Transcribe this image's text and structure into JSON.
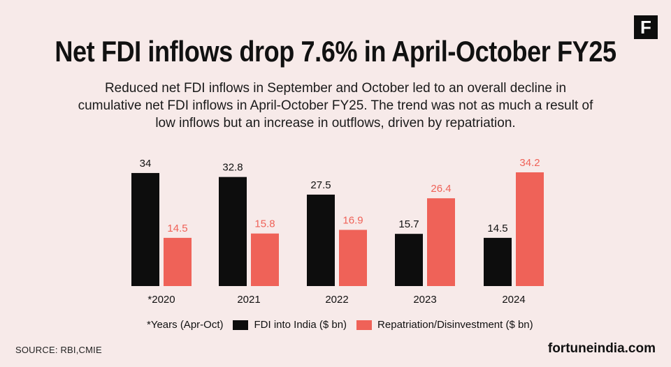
{
  "brand": {
    "logo_letter": "F",
    "site": "fortuneindia.com"
  },
  "header": {
    "title": "Net FDI inflows drop 7.6% in April-October FY25",
    "subtitle": "Reduced net FDI inflows in September and October led to an overall decline in cumulative net FDI inflows in April-October FY25. The trend was not as much a result of low inflows but an increase in outflows, driven by repatriation."
  },
  "legend": {
    "note": "*Years (Apr-Oct)",
    "items": [
      {
        "label": "FDI into India ($ bn)"
      },
      {
        "label": "Repatriation/Disinvestment ($ bn)"
      }
    ]
  },
  "footer": {
    "source": "SOURCE: RBI,CMIE"
  },
  "colors": {
    "fdi": "#0d0d0d",
    "repatriation": "#ef6258",
    "background": "#f7eae9"
  },
  "chart_data": {
    "type": "bar",
    "title": "Net FDI inflows drop 7.6% in April-October FY25",
    "xlabel": "",
    "ylabel": "",
    "categories": [
      "*2020",
      "2021",
      "2022",
      "2023",
      "2024"
    ],
    "series": [
      {
        "name": "FDI into India ($ bn)",
        "values": [
          34,
          32.8,
          27.5,
          15.7,
          14.5
        ]
      },
      {
        "name": "Repatriation/Disinvestment ($ bn)",
        "values": [
          14.5,
          15.8,
          16.9,
          26.4,
          34.2
        ]
      }
    ],
    "ylim": [
      0,
      34.2
    ],
    "grid": false,
    "legend_position": "bottom"
  }
}
